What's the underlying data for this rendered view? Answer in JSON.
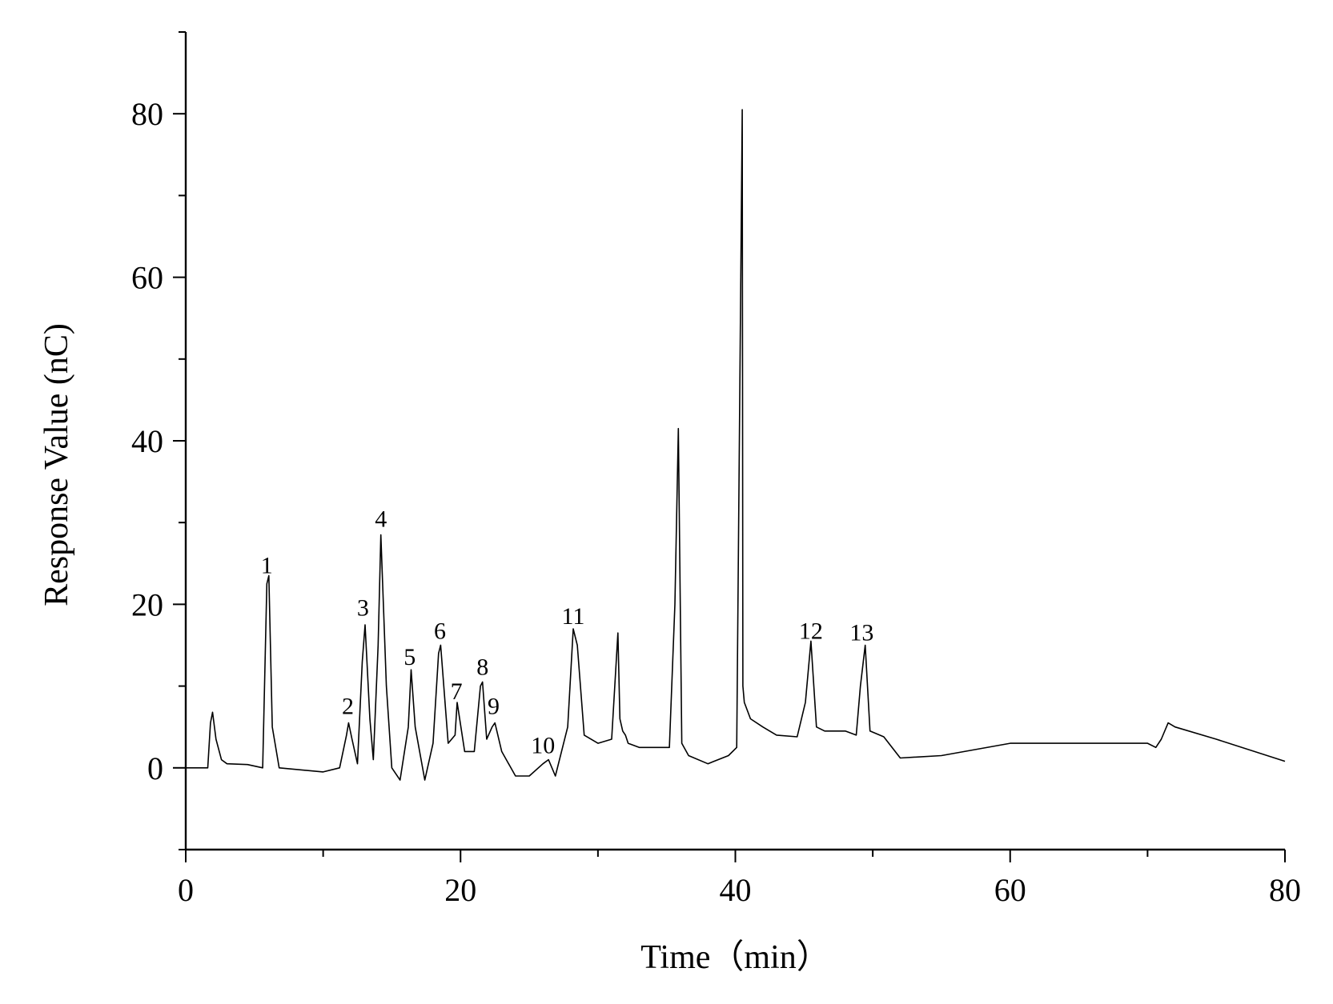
{
  "chart_data": {
    "type": "line",
    "title": "",
    "xlabel": "Time（min）",
    "ylabel": "Response Value (nC)",
    "xlim": [
      0,
      80
    ],
    "ylim": [
      -10,
      90
    ],
    "x_ticks": [
      0,
      20,
      40,
      60,
      80
    ],
    "x_minor_ticks": [
      10,
      30,
      50,
      70
    ],
    "y_ticks": [
      0,
      20,
      40,
      60,
      80
    ],
    "y_minor_ticks": [
      -10,
      10,
      30,
      50,
      70
    ],
    "grid": false,
    "line_color": "#000000",
    "series": [
      {
        "x": [
          0,
          1.6,
          1.8,
          1.95,
          2.2,
          2.6,
          3,
          4.5,
          5.6,
          5.9,
          6.05,
          6.3,
          6.8,
          10,
          11.2,
          11.7,
          11.85,
          12.1,
          12.5,
          12.85,
          13.05,
          13.4,
          13.65,
          14.0,
          14.2,
          14.6,
          15.0,
          15.6,
          16.2,
          16.4,
          16.7,
          17.4,
          18.0,
          18.4,
          18.55,
          19.1,
          19.6,
          19.75,
          20.3,
          21.0,
          21.45,
          21.6,
          21.9,
          22.3,
          22.5,
          23.0,
          24.0,
          25.0,
          26.0,
          26.4,
          26.9,
          27.8,
          28.2,
          28.5,
          29.0,
          30.0,
          31.0,
          31.45,
          31.6,
          31.8,
          32.0,
          32.2,
          33.0,
          35.2,
          35.6,
          35.85,
          36.1,
          36.6,
          38.0,
          39.5,
          40.1,
          40.5,
          40.55,
          40.65,
          41.1,
          42.0,
          43.0,
          44.5,
          45.1,
          45.5,
          45.9,
          46.5,
          48.0,
          48.8,
          49.1,
          49.45,
          49.8,
          50.8,
          52.0,
          55.0,
          60.0,
          65.0,
          70.0,
          70.6,
          71.0,
          71.5,
          72.0,
          75.0,
          80.0
        ],
        "y": [
          0,
          0,
          5.5,
          6.8,
          3.5,
          1.0,
          0.5,
          0.4,
          0,
          22.5,
          23.5,
          5,
          0,
          -0.5,
          0,
          4,
          5.5,
          3.5,
          0.5,
          13,
          17.5,
          6,
          1,
          15,
          28.5,
          10,
          0,
          -1.5,
          5,
          12,
          5,
          -1.5,
          3,
          14,
          15,
          3,
          4,
          8,
          2,
          2,
          10,
          10.5,
          3.5,
          5,
          5.5,
          2,
          -1,
          -1,
          0.5,
          1,
          -1,
          5,
          17,
          15,
          4,
          3,
          3.5,
          16.5,
          6,
          4.5,
          4,
          3,
          2.5,
          2.5,
          20,
          41.5,
          3,
          1.5,
          0.5,
          1.5,
          2.5,
          80.5,
          10,
          8,
          6,
          5,
          4,
          3.8,
          8,
          15.5,
          5,
          4.5,
          4.5,
          4,
          10,
          15,
          4.5,
          3.8,
          1.2,
          1.5,
          3,
          3,
          3,
          2.5,
          3.5,
          5.5,
          5,
          3.5,
          0.8
        ]
      }
    ],
    "annotations": [
      {
        "text": "1",
        "x": 5.9,
        "y": 23.8
      },
      {
        "text": "2",
        "x": 11.8,
        "y": 6.6
      },
      {
        "text": "3",
        "x": 12.9,
        "y": 18.6
      },
      {
        "text": "4",
        "x": 14.2,
        "y": 29.5
      },
      {
        "text": "5",
        "x": 16.3,
        "y": 12.6
      },
      {
        "text": "6",
        "x": 18.5,
        "y": 15.8
      },
      {
        "text": "7",
        "x": 19.7,
        "y": 8.4
      },
      {
        "text": "8",
        "x": 21.6,
        "y": 11.4
      },
      {
        "text": "9",
        "x": 22.4,
        "y": 6.6
      },
      {
        "text": "10",
        "x": 26.0,
        "y": 1.8
      },
      {
        "text": "11",
        "x": 28.2,
        "y": 17.6
      },
      {
        "text": "12",
        "x": 45.5,
        "y": 15.8
      },
      {
        "text": "13",
        "x": 49.2,
        "y": 15.6
      }
    ]
  }
}
